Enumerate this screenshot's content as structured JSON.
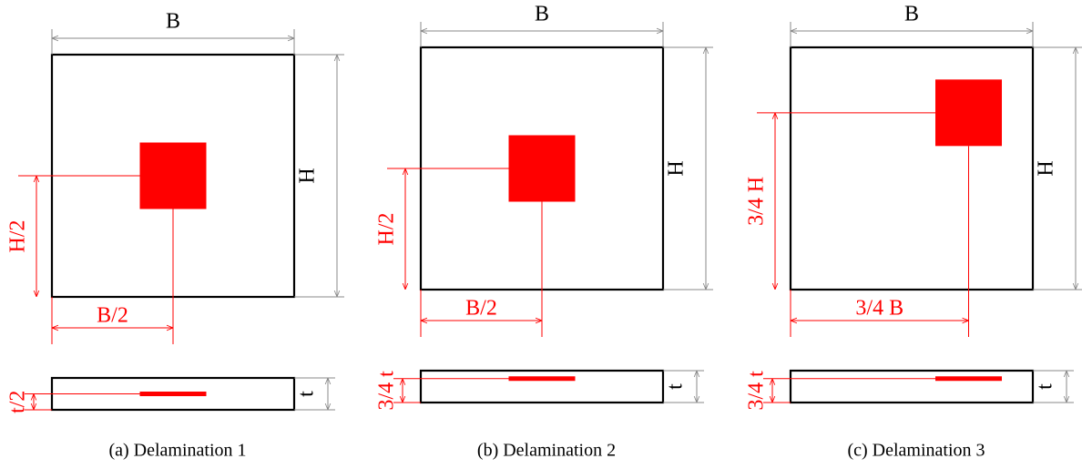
{
  "panels": [
    {
      "width_label": "B",
      "height_label": "H",
      "x_label": "B/2",
      "y_label": "H/2",
      "thickness_label": "t",
      "depth_label": "t/2",
      "caption": "(a) Delamination 1"
    },
    {
      "width_label": "B",
      "height_label": "H",
      "x_label": "B/2",
      "y_label": "H/2",
      "thickness_label": "t",
      "depth_label": "3/4 t",
      "caption": "(b) Delamination 2"
    },
    {
      "width_label": "B",
      "height_label": "H",
      "x_label": "3/4 B",
      "y_label": "3/4 H",
      "thickness_label": "t",
      "depth_label": "3/4 t",
      "caption": "(c) Delamination 3"
    }
  ]
}
